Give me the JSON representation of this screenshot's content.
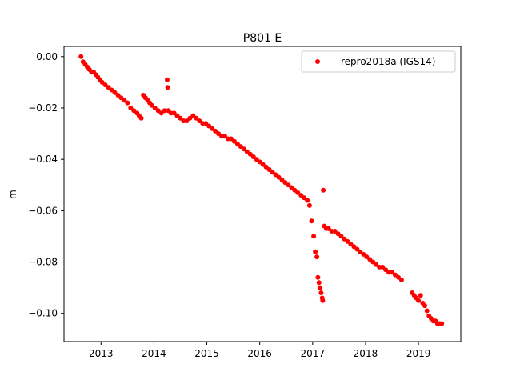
{
  "chart_data": {
    "type": "scatter",
    "title": "P801 E",
    "xlabel": "",
    "ylabel": "m",
    "xlim": [
      2012.3,
      2019.8
    ],
    "ylim": [
      -0.111,
      0.004
    ],
    "xticks": [
      2013,
      2014,
      2015,
      2016,
      2017,
      2018,
      2019
    ],
    "xtick_labels": [
      "2013",
      "2014",
      "2015",
      "2016",
      "2017",
      "2018",
      "2019"
    ],
    "yticks": [
      0.0,
      -0.02,
      -0.04,
      -0.06,
      -0.08,
      -0.1
    ],
    "ytick_labels": [
      "0.00",
      "−0.02",
      "−0.04",
      "−0.06",
      "−0.08",
      "−0.10"
    ],
    "grid": false,
    "legend_position": "top-right",
    "series": [
      {
        "name": "repro2018a (IGS14)",
        "color": "#ff0000",
        "marker": "circle",
        "x": [
          2012.62,
          2012.66,
          2012.7,
          2012.74,
          2012.78,
          2012.82,
          2012.86,
          2012.9,
          2012.94,
          2012.98,
          2013.02,
          2013.08,
          2013.14,
          2013.2,
          2013.26,
          2013.32,
          2013.38,
          2013.44,
          2013.5,
          2013.56,
          2013.62,
          2013.68,
          2013.72,
          2013.76,
          2013.8,
          2013.84,
          2013.88,
          2013.92,
          2013.96,
          2014.02,
          2014.08,
          2014.14,
          2014.2,
          2014.25,
          2014.26,
          2014.27,
          2014.32,
          2014.38,
          2014.44,
          2014.5,
          2014.56,
          2014.62,
          2014.68,
          2014.74,
          2014.8,
          2014.86,
          2014.92,
          2014.98,
          2015.04,
          2015.1,
          2015.16,
          2015.22,
          2015.28,
          2015.34,
          2015.4,
          2015.46,
          2015.52,
          2015.58,
          2015.64,
          2015.7,
          2015.76,
          2015.82,
          2015.88,
          2015.94,
          2016.0,
          2016.06,
          2016.12,
          2016.18,
          2016.24,
          2016.3,
          2016.36,
          2016.42,
          2016.48,
          2016.54,
          2016.6,
          2016.66,
          2016.72,
          2016.78,
          2016.84,
          2016.9,
          2016.94,
          2016.98,
          2017.02,
          2017.05,
          2017.08,
          2017.1,
          2017.12,
          2017.14,
          2017.16,
          2017.18,
          2017.19,
          2017.2,
          2017.22,
          2017.26,
          2017.3,
          2017.36,
          2017.42,
          2017.48,
          2017.54,
          2017.6,
          2017.66,
          2017.72,
          2017.78,
          2017.84,
          2017.9,
          2017.96,
          2018.02,
          2018.08,
          2018.14,
          2018.2,
          2018.26,
          2018.32,
          2018.38,
          2018.44,
          2018.5,
          2018.56,
          2018.62,
          2018.68,
          2018.88,
          2018.92,
          2018.96,
          2019.0,
          2019.04,
          2019.08,
          2019.12,
          2019.16,
          2019.2,
          2019.24,
          2019.28,
          2019.32,
          2019.36,
          2019.4,
          2019.44
        ],
        "y": [
          0.0,
          -0.002,
          -0.003,
          -0.004,
          -0.005,
          -0.006,
          -0.006,
          -0.007,
          -0.008,
          -0.009,
          -0.01,
          -0.011,
          -0.012,
          -0.013,
          -0.014,
          -0.015,
          -0.016,
          -0.017,
          -0.018,
          -0.02,
          -0.021,
          -0.022,
          -0.023,
          -0.024,
          -0.015,
          -0.016,
          -0.017,
          -0.018,
          -0.019,
          -0.02,
          -0.021,
          -0.022,
          -0.021,
          -0.009,
          -0.012,
          -0.021,
          -0.022,
          -0.022,
          -0.023,
          -0.024,
          -0.025,
          -0.025,
          -0.024,
          -0.023,
          -0.024,
          -0.025,
          -0.026,
          -0.026,
          -0.027,
          -0.028,
          -0.029,
          -0.03,
          -0.031,
          -0.031,
          -0.032,
          -0.032,
          -0.033,
          -0.034,
          -0.035,
          -0.036,
          -0.037,
          -0.038,
          -0.039,
          -0.04,
          -0.041,
          -0.042,
          -0.043,
          -0.044,
          -0.045,
          -0.046,
          -0.047,
          -0.048,
          -0.049,
          -0.05,
          -0.051,
          -0.052,
          -0.053,
          -0.054,
          -0.055,
          -0.056,
          -0.058,
          -0.064,
          -0.07,
          -0.076,
          -0.078,
          -0.086,
          -0.088,
          -0.09,
          -0.092,
          -0.094,
          -0.095,
          -0.052,
          -0.066,
          -0.067,
          -0.067,
          -0.068,
          -0.068,
          -0.069,
          -0.07,
          -0.071,
          -0.072,
          -0.073,
          -0.074,
          -0.075,
          -0.076,
          -0.077,
          -0.078,
          -0.079,
          -0.08,
          -0.081,
          -0.082,
          -0.082,
          -0.083,
          -0.084,
          -0.084,
          -0.085,
          -0.086,
          -0.087,
          -0.092,
          -0.093,
          -0.094,
          -0.095,
          -0.093,
          -0.096,
          -0.097,
          -0.099,
          -0.101,
          -0.102,
          -0.103,
          -0.103,
          -0.104,
          -0.104,
          -0.104
        ]
      }
    ]
  }
}
